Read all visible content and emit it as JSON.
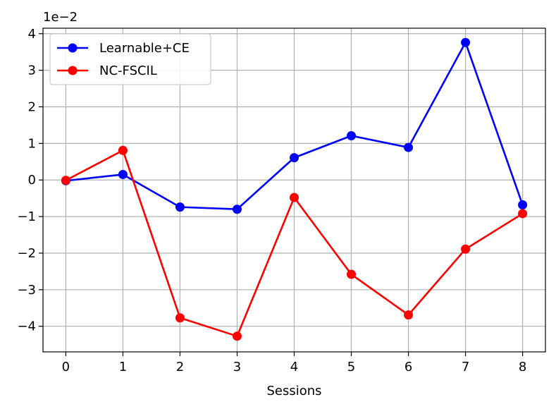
{
  "chart_data": {
    "type": "line",
    "x": [
      0,
      1,
      2,
      3,
      4,
      5,
      6,
      7,
      8
    ],
    "xlabel": "Sessions",
    "ylabel": "",
    "y_offset_text": "1e−2",
    "y_scale": 0.01,
    "xlim": [
      -0.4,
      8.4
    ],
    "ylim": [
      -4.7,
      4.15
    ],
    "xticks": [
      "0",
      "1",
      "2",
      "3",
      "4",
      "5",
      "6",
      "7",
      "8"
    ],
    "yticks": [
      4,
      3,
      2,
      1,
      0,
      -1,
      -2,
      -3,
      -4
    ],
    "ytick_labels": [
      "4",
      "3",
      "2",
      "1",
      "0",
      "−1",
      "−2",
      "−3",
      "−4"
    ],
    "grid": true,
    "legend_position": "top-left",
    "series": [
      {
        "name": "Learnable+CE",
        "color": "#0000ff",
        "values": [
          -0.02,
          0.15,
          -0.74,
          -0.8,
          0.61,
          1.21,
          0.89,
          3.76,
          -0.68
        ]
      },
      {
        "name": "NC-FSCIL",
        "color": "#ff0000",
        "values": [
          -0.01,
          0.81,
          -3.77,
          -4.27,
          -0.48,
          -2.58,
          -3.69,
          -1.89,
          -0.92
        ]
      }
    ]
  }
}
